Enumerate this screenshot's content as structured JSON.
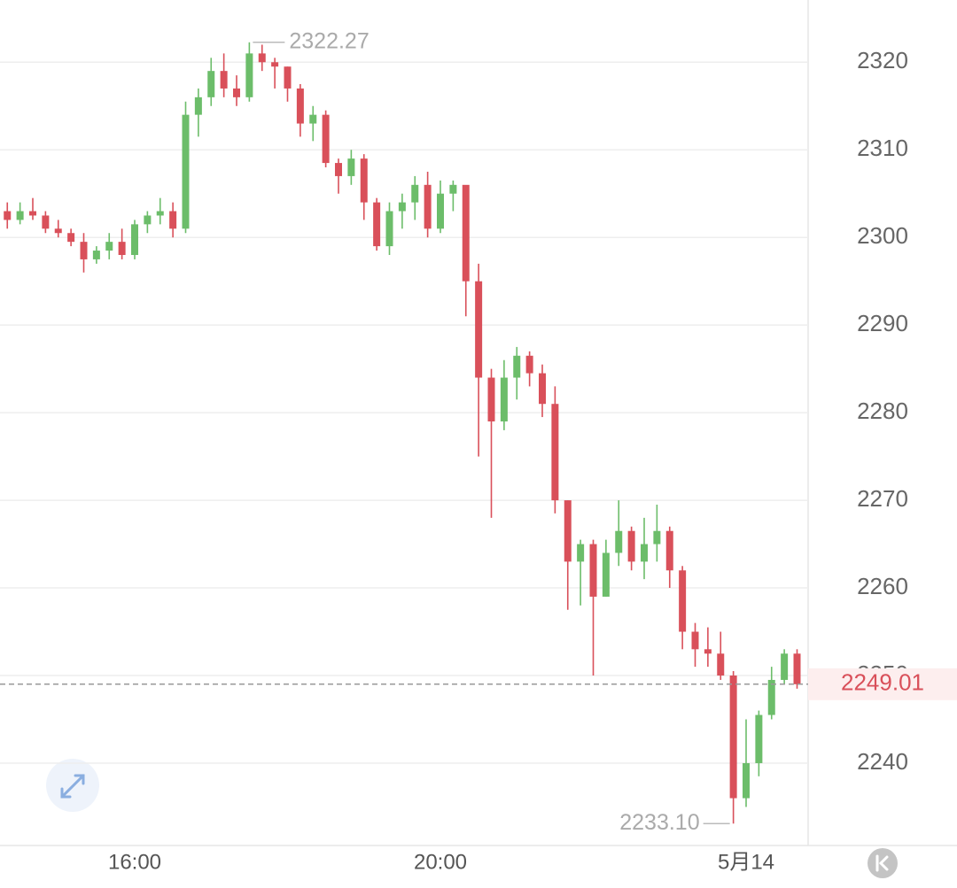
{
  "chart_data": {
    "type": "candlestick",
    "categories": [
      null,
      null,
      null,
      null,
      null,
      null,
      null,
      null,
      null,
      null,
      "16:00",
      null,
      null,
      null,
      null,
      null,
      null,
      null,
      null,
      null,
      null,
      null,
      null,
      null,
      null,
      null,
      null,
      null,
      null,
      null,
      null,
      null,
      null,
      null,
      "20:00",
      null,
      null,
      null,
      null,
      null,
      null,
      null,
      null,
      null,
      null,
      null,
      null,
      null,
      null,
      null,
      null,
      null,
      null,
      null,
      null,
      null,
      null,
      null,
      "5月14",
      null,
      null,
      null,
      null
    ],
    "open": [
      2303,
      2302,
      2303,
      2302.5,
      2301,
      2300.5,
      2299.5,
      2297.5,
      2298.5,
      2299.5,
      2298,
      2301.5,
      2302.5,
      2303,
      2301,
      2314,
      2316,
      2319,
      2317,
      2316,
      2321,
      2320,
      2319.5,
      2317,
      2313,
      2314,
      2308.5,
      2307,
      2309,
      2304,
      2299,
      2303,
      2304,
      2306,
      2301,
      2305,
      2306,
      2295,
      2284,
      2279,
      2284,
      2286.5,
      2284.5,
      2281,
      2270,
      2263,
      2265,
      2259,
      2264,
      2266.5,
      2263,
      2265,
      2266.5,
      2262,
      2255,
      2253,
      2252.5,
      2250,
      2236,
      2240,
      2245.5,
      2249.5,
      2252.5
    ],
    "high": [
      2304,
      2304,
      2304.5,
      2303,
      2302,
      2301,
      2300.5,
      2299,
      2300.5,
      2301,
      2302,
      2303,
      2304.5,
      2304,
      2315.5,
      2317,
      2320.5,
      2321,
      2318.5,
      2322.27,
      2322,
      2320.5,
      2319.5,
      2317.5,
      2315,
      2314.5,
      2309,
      2310,
      2309.5,
      2304.5,
      2304,
      2305,
      2307,
      2307.5,
      2306.5,
      2306.5,
      2305.5,
      2297,
      2285,
      2286,
      2287.5,
      2287,
      2285.5,
      2283,
      2270,
      2265.5,
      2265.5,
      2265.5,
      2270,
      2267,
      2268,
      2269.5,
      2267,
      2262.5,
      2256,
      2255.5,
      2255,
      2250.5,
      2245,
      2246,
      2251,
      2253,
      2253
    ],
    "low": [
      2301,
      2301.5,
      2302,
      2300.5,
      2300,
      2299,
      2296,
      2297,
      2297.5,
      2297.5,
      2297.5,
      2300.5,
      2301.5,
      2300,
      2300.5,
      2311.5,
      2315,
      2316,
      2315,
      2315.5,
      2319,
      2317,
      2315.5,
      2311.5,
      2311,
      2308,
      2305,
      2306,
      2302,
      2298.5,
      2298,
      2301,
      2302,
      2300,
      2300.5,
      2303,
      2291,
      2275,
      2268,
      2278,
      2281.5,
      2283,
      2279.5,
      2268.5,
      2257.5,
      2258,
      2250,
      2259,
      2262.5,
      2262,
      2261,
      2263,
      2260,
      2253,
      2251,
      2251,
      2249.5,
      2233.1,
      2235,
      2238.5,
      2245,
      2249,
      2248.5
    ],
    "close": [
      2302,
      2303,
      2302.5,
      2301,
      2300.5,
      2299.5,
      2297.5,
      2298.5,
      2299.5,
      2298,
      2301.5,
      2302.5,
      2303,
      2301,
      2314,
      2316,
      2319,
      2317,
      2316,
      2321,
      2320,
      2319.5,
      2317,
      2313,
      2314,
      2308.5,
      2307,
      2309,
      2304,
      2299,
      2303,
      2304,
      2306,
      2301,
      2305,
      2306,
      2295,
      2284,
      2279,
      2284,
      2286.5,
      2284.5,
      2281,
      2270,
      2263,
      2265,
      2259,
      2264,
      2266.5,
      2263,
      2265,
      2266.5,
      2262,
      2255,
      2253,
      2252.5,
      2250,
      2236,
      2240,
      2245.5,
      2249.5,
      2252.5,
      2249.01
    ],
    "up_color": "#6cbd6a",
    "down_color": "#d9505a",
    "high_label": "2322.27",
    "low_label": "2233.10",
    "ylim": [
      2230.6,
      2327.1
    ],
    "yticks": [
      2240,
      2250,
      2260,
      2270,
      2280,
      2290,
      2300,
      2310,
      2320
    ],
    "grid": true
  }
}
